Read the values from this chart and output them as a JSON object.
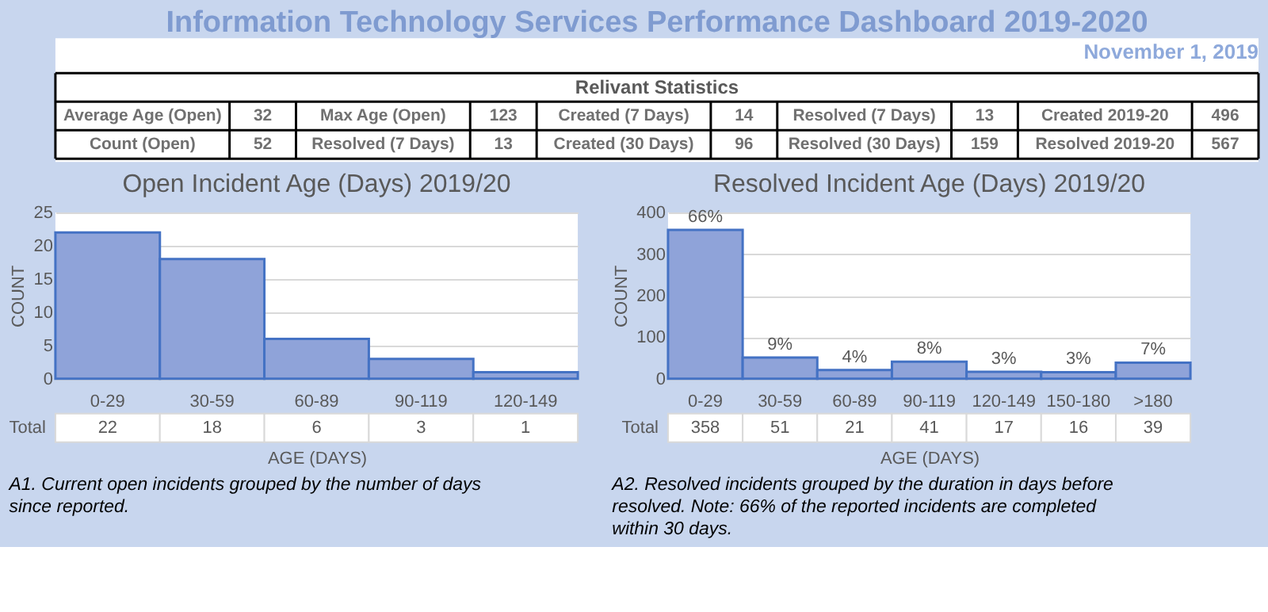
{
  "chart_data": [
    {
      "type": "other",
      "title": "Information Technology Services Performance Dashboard 2019-2020",
      "subtitle": "Relivant Statistics",
      "annotations": [
        "November 1, 2019",
        "Average Age (Open)",
        "32",
        "Max Age (Open)",
        "123",
        "Created (7 Days)",
        "14",
        "Resolved (7 Days)",
        "13",
        "Created 2019-20",
        "496",
        "Count (Open)",
        "52",
        "Resolved (7 Days)",
        "13",
        "Created (30 Days)",
        "96",
        "Resolved (30 Days)",
        "159",
        "Resolved 2019-20",
        "567"
      ]
    },
    {
      "type": "bar",
      "title": "Open Incident Age (Days) 2019/20",
      "xlabel": "AGE (DAYS)",
      "ylabel": "COUNT",
      "categories": [
        "0-29",
        "30-59",
        "60-89",
        "90-119",
        "120-149"
      ],
      "values": [
        22,
        18,
        6,
        3,
        1
      ],
      "color": "#8fa3d9",
      "ylim": [
        0,
        25
      ],
      "yticks": [
        0,
        5,
        10,
        15,
        20,
        25
      ],
      "grid": "y",
      "legend": false,
      "data_labels": true,
      "annotations": [
        "Total",
        "A1.  Current open incidents grouped by the number of days since reported."
      ]
    },
    {
      "type": "bar",
      "title": "Resolved Incident Age (Days) 2019/20",
      "xlabel": "AGE (DAYS)",
      "ylabel": "COUNT",
      "categories": [
        "0-29",
        "30-59",
        "60-89",
        "90-119",
        "120-149",
        "150-180",
        ">180"
      ],
      "values": [
        358,
        51,
        21,
        41,
        17,
        16,
        39
      ],
      "color": "#8fa3d9",
      "ylim": [
        0,
        400
      ],
      "yticks": [
        0,
        100,
        200,
        300,
        400
      ],
      "grid": "y",
      "legend": false,
      "data_labels": true,
      "annotations": [
        "Total",
        "A2. Resolved incidents grouped by the duration in days before resolved.  Note: 66% of the reported incidents are completed within 30 days.",
        {
          "text": "66%",
          "x": "0-29",
          "y": 358
        },
        {
          "text": "9%",
          "x": "30-59",
          "y": 51
        },
        {
          "text": "4%",
          "x": "60-89",
          "y": 21
        },
        {
          "text": "8%",
          "x": "90-119",
          "y": 41
        },
        {
          "text": "3%",
          "x": "120-149",
          "y": 17
        },
        {
          "text": "3%",
          "x": "150-180",
          "y": 16
        },
        {
          "text": "7%",
          "x": ">180",
          "y": 39
        }
      ]
    }
  ]
}
